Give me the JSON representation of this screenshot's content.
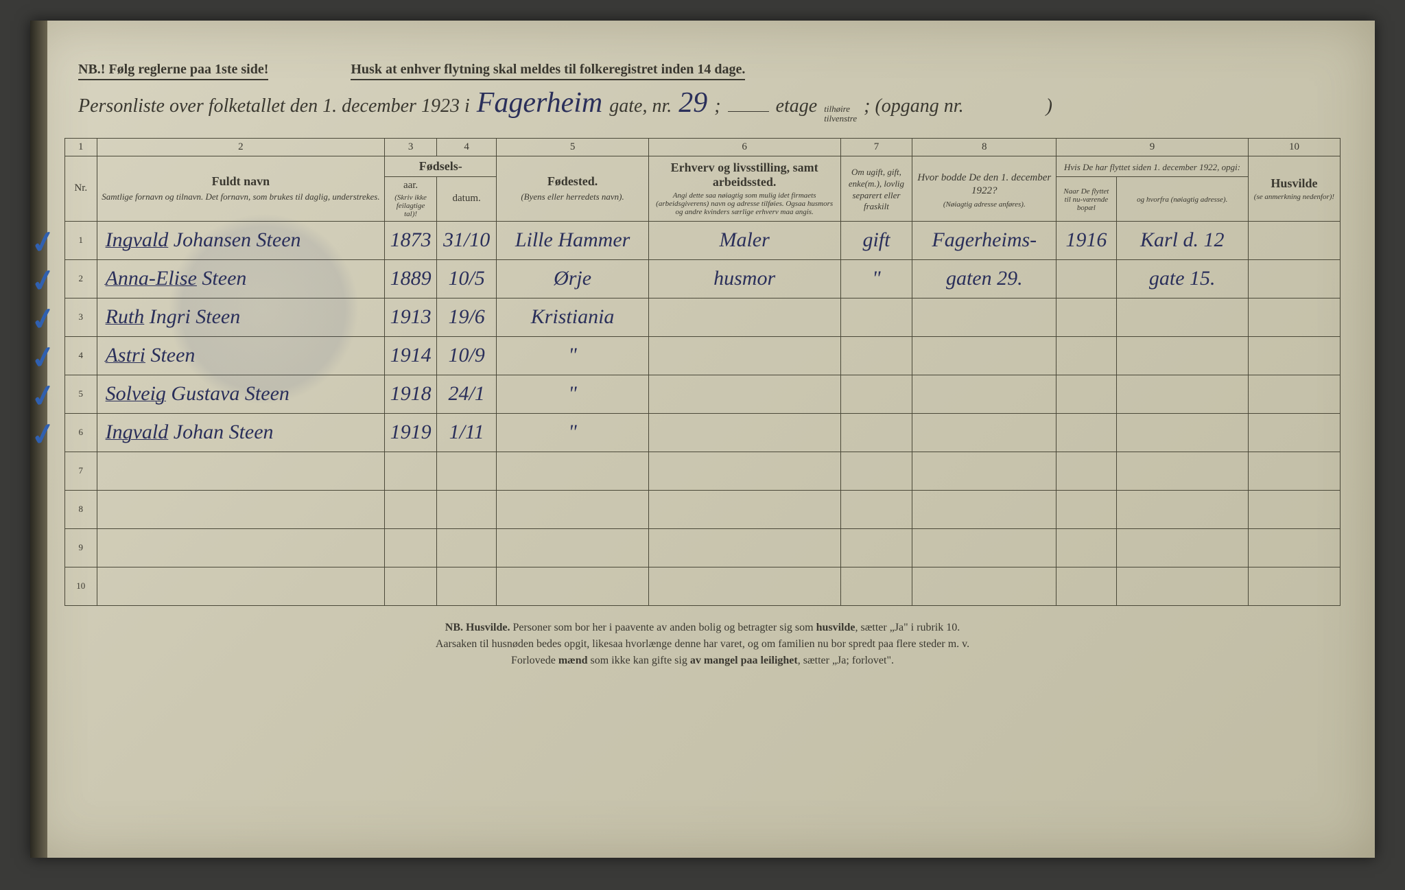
{
  "top_notes": {
    "left": "NB.! Følg reglerne paa 1ste side!",
    "right": "Husk at enhver flytning skal meldes til folkeregistret inden 14 dage."
  },
  "title": {
    "prefix": "Personliste over folketallet den 1. december 1923 i",
    "street_hw": "Fagerheim",
    "gate_label": "gate, nr.",
    "number_hw": "29",
    "etage_label": "etage",
    "side_top": "tilhøire",
    "side_bottom": "tilvenstre",
    "opgang": "; (opgang nr.",
    "opgang_close": ")"
  },
  "colnums": [
    "1",
    "2",
    "3",
    "4",
    "5",
    "6",
    "7",
    "8",
    "9",
    "10"
  ],
  "headers": {
    "nr": "Nr.",
    "name_main": "Fuldt navn",
    "name_sub": "Samtlige fornavn og tilnavn.  Det fornavn, som brukes til daglig, understrekes.",
    "birth_main": "Fødsels-",
    "birth_year": "aar.",
    "birth_date": "datum.",
    "birth_note": "(Skriv ikke feilagtige tal)!",
    "birthplace_main": "Fødested.",
    "birthplace_sub": "(Byens eller herredets navn).",
    "occupation_main": "Erhverv og livsstilling, samt arbeidssted.",
    "occupation_sub": "Angi dette saa nøiagtig som mulig idet firmaets (arbeidsgiverens) navn og adresse tilføies. Ogsaa husmors og andre kvinders særlige erhverv maa angis.",
    "marital": "Om ugift, gift, enke(m.), lovlig separert eller fraskilt",
    "addr1922_main": "Hvor bodde De den 1. december 1922?",
    "addr1922_sub": "(Nøiagtig adresse anføres).",
    "moved_main": "Hvis De har flyttet siden 1. december 1922, opgi:",
    "moved_when": "Naar De flyttet til nu-værende bopæl",
    "moved_from": "og hvorfra (nøiagtig adresse).",
    "husvilde_main": "Husvilde",
    "husvilde_sub": "(se anmerkning nedenfor)!"
  },
  "rows": [
    {
      "nr": "1",
      "check": true,
      "name": "Ingvald Johansen Steen",
      "year": "1873",
      "date": "31/10",
      "birthplace": "Lille Hammer",
      "occupation": "Maler",
      "marital": "gift",
      "addr1922": "Fagerheims-",
      "moved_when": "1916",
      "moved_from": "Karl d. 12"
    },
    {
      "nr": "2",
      "check": true,
      "name": "Anna-Elise Steen",
      "year": "1889",
      "date": "10/5",
      "birthplace": "Ørje",
      "occupation": "husmor",
      "marital": "\"",
      "addr1922": "gaten 29.",
      "moved_when": "",
      "moved_from": "gate 15."
    },
    {
      "nr": "3",
      "check": true,
      "name": "Ruth Ingri Steen",
      "year": "1913",
      "date": "19/6",
      "birthplace": "Kristiania",
      "occupation": "",
      "marital": "",
      "addr1922": "",
      "moved_when": "",
      "moved_from": ""
    },
    {
      "nr": "4",
      "check": true,
      "name": "Astri Steen",
      "year": "1914",
      "date": "10/9",
      "birthplace": "\"",
      "occupation": "",
      "marital": "",
      "addr1922": "",
      "moved_when": "",
      "moved_from": ""
    },
    {
      "nr": "5",
      "check": true,
      "name": "Solveig Gustava Steen",
      "year": "1918",
      "date": "24/1",
      "birthplace": "\"",
      "occupation": "",
      "marital": "",
      "addr1922": "",
      "moved_when": "",
      "moved_from": ""
    },
    {
      "nr": "6",
      "check": true,
      "name": "Ingvald Johan Steen",
      "year": "1919",
      "date": "1/11",
      "birthplace": "\"",
      "occupation": "",
      "marital": "",
      "addr1922": "",
      "moved_when": "",
      "moved_from": ""
    },
    {
      "nr": "7",
      "check": false,
      "name": "",
      "year": "",
      "date": "",
      "birthplace": "",
      "occupation": "",
      "marital": "",
      "addr1922": "",
      "moved_when": "",
      "moved_from": ""
    },
    {
      "nr": "8",
      "check": false,
      "name": "",
      "year": "",
      "date": "",
      "birthplace": "",
      "occupation": "",
      "marital": "",
      "addr1922": "",
      "moved_when": "",
      "moved_from": ""
    },
    {
      "nr": "9",
      "check": false,
      "name": "",
      "year": "",
      "date": "",
      "birthplace": "",
      "occupation": "",
      "marital": "",
      "addr1922": "",
      "moved_when": "",
      "moved_from": ""
    },
    {
      "nr": "10",
      "check": false,
      "name": "",
      "year": "",
      "date": "",
      "birthplace": "",
      "occupation": "",
      "marital": "",
      "addr1922": "",
      "moved_when": "",
      "moved_from": ""
    }
  ],
  "footer": {
    "line1_a": "NB.  Husvilde.",
    "line1_b": "  Personer som bor her i paavente av anden bolig og betragter sig som ",
    "line1_c": "husvilde",
    "line1_d": ", sætter „Ja\" i rubrik 10.",
    "line2": "Aarsaken til husnøden bedes opgit, likesaa hvorlænge denne har varet, og om familien nu bor spredt paa flere steder m. v.",
    "line3_a": "Forlovede ",
    "line3_b": "mænd",
    "line3_c": " som ikke kan gifte sig ",
    "line3_d": "av mangel paa leilighet",
    "line3_e": ", sætter „Ja; forlovet\"."
  },
  "watermark_text": "",
  "colors": {
    "paper": "#ccc8b2",
    "ink_print": "#3a3830",
    "ink_hand": "#2a2f5a",
    "check_blue": "#3060b0",
    "border": "#4a4838"
  }
}
